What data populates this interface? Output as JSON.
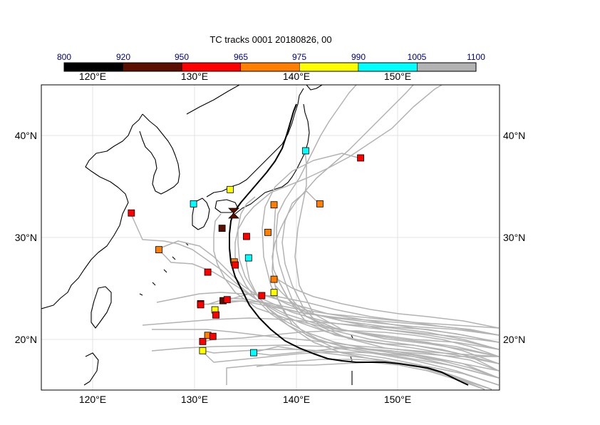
{
  "title": "TC tracks  0001 20180826, 00",
  "colorbar": {
    "labels": [
      "800",
      "920",
      "950",
      "965",
      "975",
      "990",
      "1005",
      "1100"
    ],
    "colors": [
      "#000000",
      "#5a0f00",
      "#ff0000",
      "#ff7f00",
      "#ffff00",
      "#00ffff",
      "#b3b3b3"
    ]
  },
  "axes": {
    "top_ticks": [
      "120°E",
      "130°E",
      "140°E",
      "150°E"
    ],
    "bottom_ticks": [
      "120°E",
      "130°E",
      "140°E",
      "150°E"
    ],
    "left_ticks": [
      "40°N",
      "30°N",
      "20°N"
    ],
    "right_ticks": [
      "40°N",
      "30°N",
      "20°N"
    ]
  },
  "colors": {
    "land_outline": "#000000",
    "ensemble_track": "#b3b3b3",
    "main_track": "#000000",
    "grid": "#dcdcdc"
  },
  "markers": [
    {
      "lon": 146.3,
      "lat": 37.8,
      "color": "red"
    },
    {
      "lon": 140.9,
      "lat": 38.5,
      "color": "cyan"
    },
    {
      "lon": 133.5,
      "lat": 34.7,
      "color": "yellow"
    },
    {
      "lon": 142.3,
      "lat": 33.3,
      "color": "orange"
    },
    {
      "lon": 137.8,
      "lat": 33.2,
      "color": "orange"
    },
    {
      "lon": 123.8,
      "lat": 32.4,
      "color": "red"
    },
    {
      "lon": 129.9,
      "lat": 33.3,
      "color": "cyan"
    },
    {
      "lon": 132.7,
      "lat": 30.9,
      "color": "darkred"
    },
    {
      "lon": 137.2,
      "lat": 30.5,
      "color": "orange"
    },
    {
      "lon": 135.1,
      "lat": 30.1,
      "color": "red"
    },
    {
      "lon": 126.5,
      "lat": 28.8,
      "color": "orange"
    },
    {
      "lon": 135.3,
      "lat": 28.0,
      "color": "cyan"
    },
    {
      "lon": 133.9,
      "lat": 27.6,
      "color": "orange"
    },
    {
      "lon": 134.0,
      "lat": 27.3,
      "color": "red"
    },
    {
      "lon": 131.3,
      "lat": 26.6,
      "color": "red"
    },
    {
      "lon": 137.8,
      "lat": 25.9,
      "color": "orange"
    },
    {
      "lon": 137.8,
      "lat": 24.6,
      "color": "yellow"
    },
    {
      "lon": 136.6,
      "lat": 24.3,
      "color": "red"
    },
    {
      "lon": 130.6,
      "lat": 23.5,
      "color": "red"
    },
    {
      "lon": 130.6,
      "lat": 23.4,
      "color": "red"
    },
    {
      "lon": 132.8,
      "lat": 23.8,
      "color": "darkred"
    },
    {
      "lon": 133.2,
      "lat": 23.9,
      "color": "red"
    },
    {
      "lon": 132.0,
      "lat": 22.9,
      "color": "yellow"
    },
    {
      "lon": 132.1,
      "lat": 22.4,
      "color": "red"
    },
    {
      "lon": 131.3,
      "lat": 20.4,
      "color": "orange"
    },
    {
      "lon": 131.8,
      "lat": 20.3,
      "color": "red"
    },
    {
      "lon": 130.8,
      "lat": 19.8,
      "color": "red"
    },
    {
      "lon": 130.8,
      "lat": 18.9,
      "color": "yellow"
    },
    {
      "lon": 135.8,
      "lat": 18.7,
      "color": "cyan"
    }
  ]
}
